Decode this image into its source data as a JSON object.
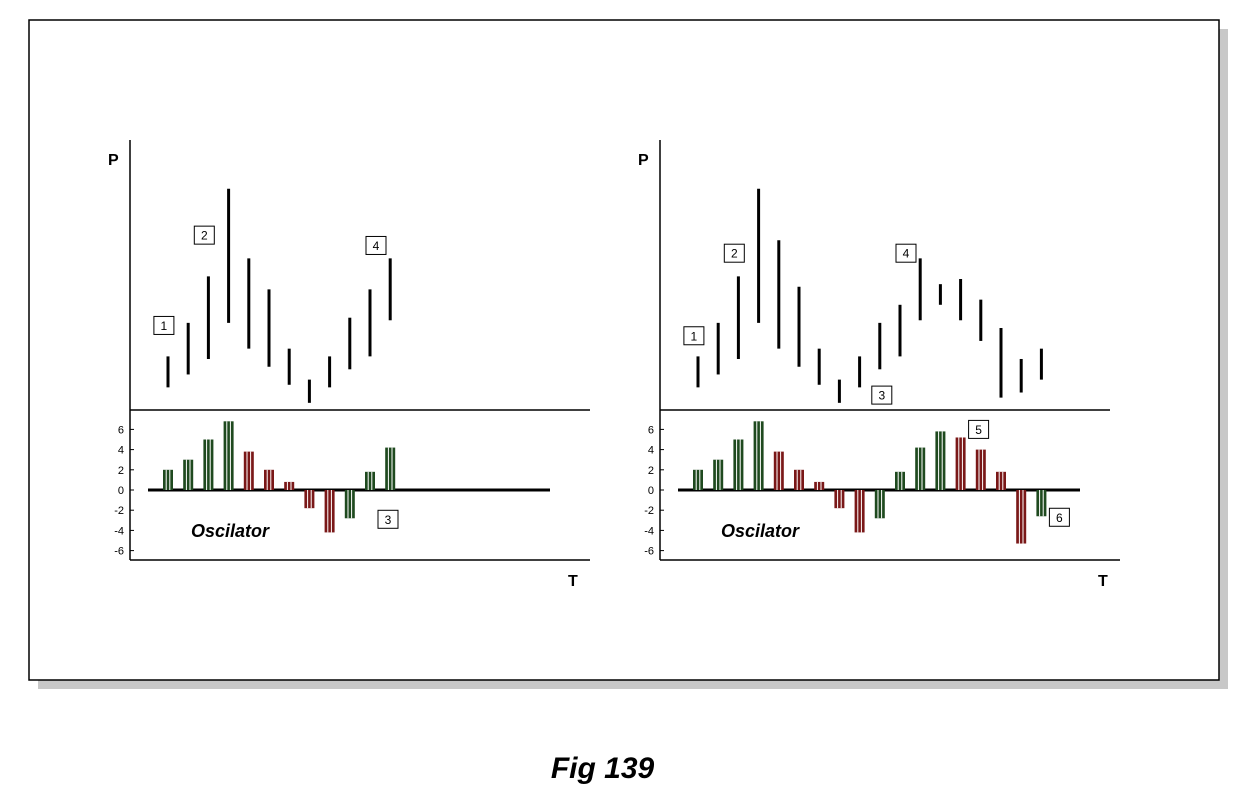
{
  "caption": "Fig 139",
  "colors": {
    "up": "#1f4a1f",
    "down": "#7a1818",
    "axis": "#000000",
    "frame_shadow": "#c8c8c8"
  },
  "chart_data": [
    {
      "type": "bar",
      "subtype": "price-bars-with-oscillator",
      "price_axis_label": "P",
      "time_axis_label": "T",
      "oscillator_label": "Oscilator",
      "oscillator_ticks": [
        "6",
        "4",
        "2",
        "0",
        "-2",
        "-4",
        "-6"
      ],
      "oscillator_ylim": [
        -6,
        6
      ],
      "price_ylim": [
        0,
        100
      ],
      "price_bars": [
        {
          "low": 8,
          "high": 20
        },
        {
          "low": 13,
          "high": 33
        },
        {
          "low": 19,
          "high": 51
        },
        {
          "low": 33,
          "high": 85
        },
        {
          "low": 23,
          "high": 58
        },
        {
          "low": 16,
          "high": 46
        },
        {
          "low": 9,
          "high": 23
        },
        {
          "low": 2,
          "high": 11
        },
        {
          "low": 8,
          "high": 20
        },
        {
          "low": 15,
          "high": 35
        },
        {
          "low": 20,
          "high": 46
        },
        {
          "low": 34,
          "high": 58
        }
      ],
      "oscillator_values": [
        2,
        3,
        5,
        6.8,
        3.8,
        2,
        0.8,
        -1.8,
        -4.2,
        -2.8,
        1.8,
        4.2
      ],
      "labels": [
        {
          "text": "1",
          "bar": 0,
          "y": 32,
          "panel": "price"
        },
        {
          "text": "2",
          "bar": 2,
          "y": 67,
          "panel": "price"
        },
        {
          "text": "4",
          "bar": 10,
          "y": 63,
          "panel": "price"
        },
        {
          "text": "3",
          "bar": 10,
          "y": -2.9,
          "panel": "oscillator"
        }
      ]
    },
    {
      "type": "bar",
      "subtype": "price-bars-with-oscillator",
      "price_axis_label": "P",
      "time_axis_label": "T",
      "oscillator_label": "Oscilator",
      "oscillator_ticks": [
        "6",
        "4",
        "2",
        "0",
        "-2",
        "-4",
        "-6"
      ],
      "oscillator_ylim": [
        -6,
        6
      ],
      "price_ylim": [
        0,
        100
      ],
      "price_bars": [
        {
          "low": 8,
          "high": 20
        },
        {
          "low": 13,
          "high": 33
        },
        {
          "low": 19,
          "high": 51
        },
        {
          "low": 33,
          "high": 85
        },
        {
          "low": 23,
          "high": 65
        },
        {
          "low": 16,
          "high": 47
        },
        {
          "low": 9,
          "high": 23
        },
        {
          "low": 2,
          "high": 11
        },
        {
          "low": 8,
          "high": 20
        },
        {
          "low": 15,
          "high": 33
        },
        {
          "low": 20,
          "high": 40
        },
        {
          "low": 34,
          "high": 58
        },
        {
          "low": 40,
          "high": 48
        },
        {
          "low": 34,
          "high": 50
        },
        {
          "low": 26,
          "high": 42
        },
        {
          "low": 4,
          "high": 31
        },
        {
          "low": 6,
          "high": 19
        },
        {
          "low": 11,
          "high": 23
        }
      ],
      "oscillator_values": [
        2,
        3,
        5,
        6.8,
        3.8,
        2,
        0.8,
        -1.8,
        -4.2,
        -2.8,
        1.8,
        4.2,
        5.8,
        5.2,
        4,
        1.8,
        -5.3,
        -2.6
      ],
      "labels": [
        {
          "text": "1",
          "bar": 0,
          "y": 28,
          "panel": "price"
        },
        {
          "text": "2",
          "bar": 2,
          "y": 60,
          "panel": "price"
        },
        {
          "text": "4",
          "bar": 10,
          "y": 60,
          "panel": "price"
        },
        {
          "text": "3",
          "bar": 9,
          "y": 5,
          "panel": "price"
        },
        {
          "text": "5",
          "bar": 13,
          "y": 6,
          "panel": "oscillator"
        },
        {
          "text": "6",
          "bar": 17,
          "y": -2.7,
          "panel": "oscillator"
        }
      ]
    }
  ]
}
